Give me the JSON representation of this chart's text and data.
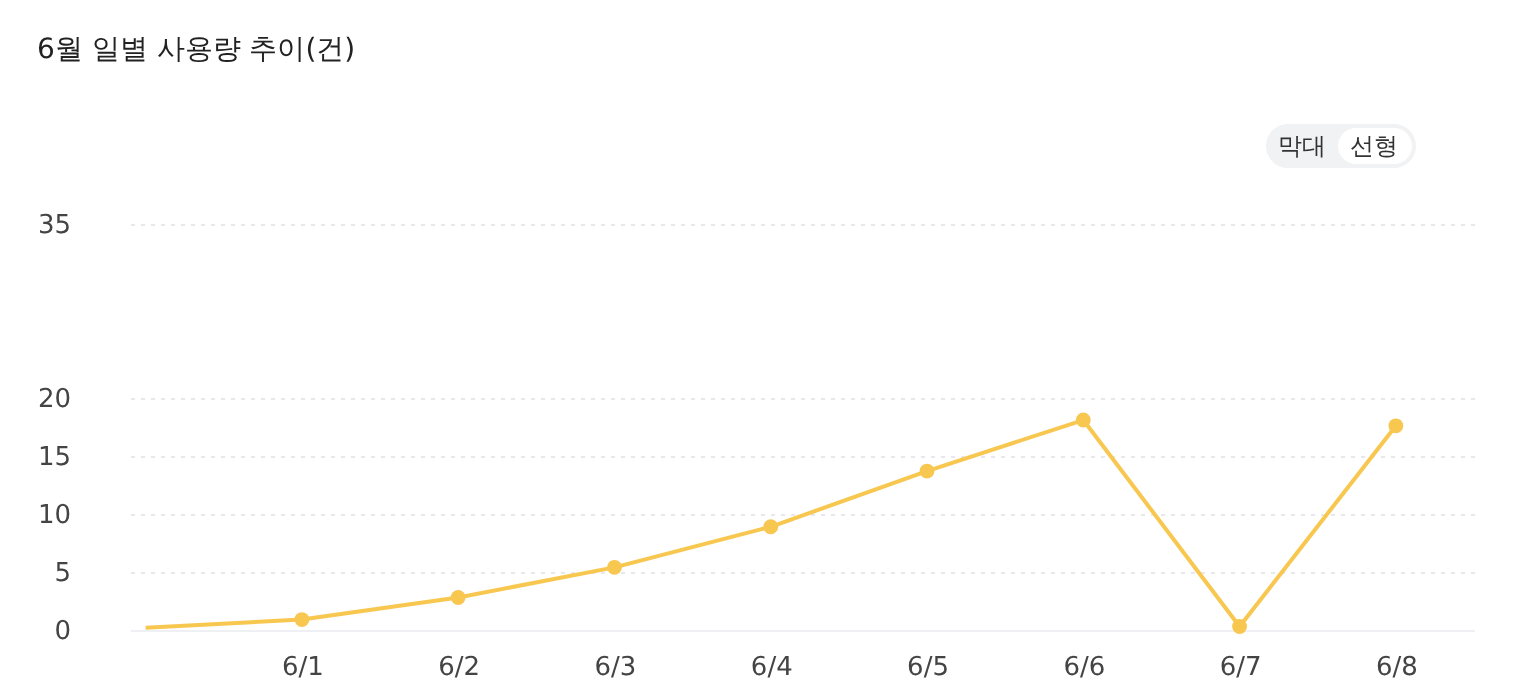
{
  "chart_data": {
    "type": "line",
    "title": "6월 일별 사용량 추이(건)",
    "categories": [
      null,
      "6/1",
      "6/2",
      "6/3",
      "6/4",
      "6/5",
      "6/6",
      "6/7",
      "6/8"
    ],
    "series": [
      {
        "color": "#f7c74f",
        "values": [
          0.2,
          0.9,
          2.8,
          5.4,
          8.9,
          13.7,
          18.1,
          0.3,
          17.6
        ]
      }
    ],
    "ylim": [
      0,
      35
    ],
    "yticks": [
      0,
      5,
      10,
      15,
      20,
      35
    ],
    "grid": "y",
    "marker": "circle",
    "line_style": "solid",
    "annotations": [
      "막대",
      "선형"
    ]
  }
}
